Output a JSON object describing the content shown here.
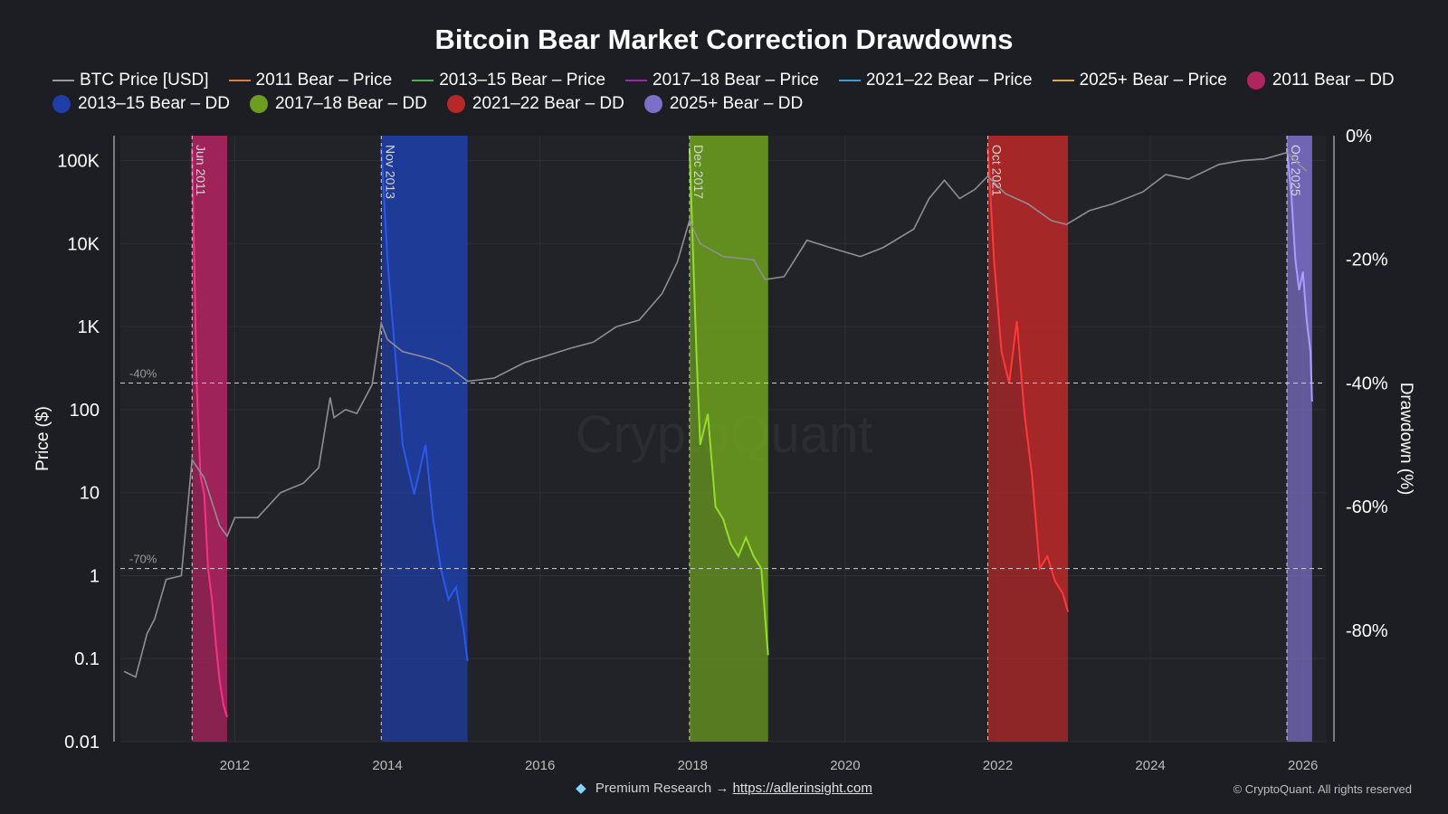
{
  "title": "Bitcoin Bear Market Correction Drawdowns",
  "legend": [
    {
      "label": "BTC Price [USD]",
      "kind": "line",
      "color": "#9a9a9a"
    },
    {
      "label": "2011 Bear – Price",
      "kind": "line",
      "color": "#e07b39"
    },
    {
      "label": "2013–15 Bear – Price",
      "kind": "line",
      "color": "#4caf50"
    },
    {
      "label": "2017–18 Bear – Price",
      "kind": "line",
      "color": "#9c27b0"
    },
    {
      "label": "2021–22 Bear – Price",
      "kind": "line",
      "color": "#3a9bd5"
    },
    {
      "label": "2025+ Bear – Price",
      "kind": "line",
      "color": "#d9a84a"
    },
    {
      "label": "2011 Bear – DD",
      "kind": "dot",
      "color": "#b0245f"
    },
    {
      "label": "2013–15 Bear – DD",
      "kind": "dot",
      "color": "#1e3fa8"
    },
    {
      "label": "2017–18 Bear – DD",
      "kind": "dot",
      "color": "#6b9e1f"
    },
    {
      "label": "2021–22 Bear – DD",
      "kind": "dot",
      "color": "#b82828"
    },
    {
      "label": "2025+ Bear – DD",
      "kind": "dot",
      "color": "#7b6fc8"
    }
  ],
  "chart_data": {
    "type": "line",
    "title": "Bitcoin Bear Market Correction Drawdowns",
    "xlabel": "",
    "ylabel": "Price ($)",
    "y2label": "Drawdown (%)",
    "yscale": "log",
    "xlim": [
      2010.5,
      2026.3
    ],
    "ylim": [
      0.01,
      200000
    ],
    "y2lim": [
      -98,
      0
    ],
    "x_ticks": [
      "2012",
      "2014",
      "2016",
      "2018",
      "2020",
      "2022",
      "2024",
      "2026"
    ],
    "y_ticks": [
      "0.01",
      "0.1",
      "1",
      "10",
      "100",
      "1K",
      "10K",
      "100K"
    ],
    "y2_ticks": [
      "0%",
      "-20%",
      "-40%",
      "-60%",
      "-80%"
    ],
    "grid": true,
    "legend_position": "top",
    "reference_lines": [
      {
        "label": "-40%",
        "drawdown": -40
      },
      {
        "label": "-70%",
        "drawdown": -70
      }
    ],
    "events": [
      {
        "label": "Jun 2011",
        "x": 2011.44
      },
      {
        "label": "Nov 2013",
        "x": 2013.92
      },
      {
        "label": "Dec 2017",
        "x": 2017.96
      },
      {
        "label": "Oct 2021",
        "x": 2021.87
      },
      {
        "label": "Oct 2025",
        "x": 2025.79
      }
    ],
    "series": [
      {
        "name": "BTC Price [USD]",
        "color": "#8e8e93",
        "x": [
          2010.55,
          2010.7,
          2010.85,
          2010.95,
          2011.1,
          2011.3,
          2011.44,
          2011.6,
          2011.8,
          2011.9,
          2012.0,
          2012.3,
          2012.6,
          2012.9,
          2013.1,
          2013.25,
          2013.3,
          2013.45,
          2013.6,
          2013.8,
          2013.92,
          2014.0,
          2014.2,
          2014.4,
          2014.6,
          2014.8,
          2015.05,
          2015.4,
          2015.8,
          2016.0,
          2016.4,
          2016.7,
          2017.0,
          2017.3,
          2017.6,
          2017.8,
          2017.96,
          2018.1,
          2018.4,
          2018.8,
          2018.95,
          2019.2,
          2019.5,
          2019.8,
          2020.2,
          2020.5,
          2020.9,
          2021.1,
          2021.3,
          2021.5,
          2021.7,
          2021.87,
          2022.1,
          2022.4,
          2022.7,
          2022.9,
          2023.2,
          2023.5,
          2023.9,
          2024.2,
          2024.5,
          2024.9,
          2025.2,
          2025.5,
          2025.79,
          2025.95,
          2026.05
        ],
        "y": [
          0.07,
          0.06,
          0.2,
          0.3,
          0.9,
          1.0,
          25,
          15,
          4,
          3,
          5,
          5,
          10,
          13,
          20,
          140,
          80,
          100,
          90,
          200,
          1100,
          700,
          500,
          450,
          400,
          330,
          220,
          240,
          370,
          420,
          550,
          650,
          1000,
          1200,
          2500,
          6000,
          19000,
          10000,
          7000,
          6400,
          3700,
          4000,
          11000,
          9000,
          7000,
          9000,
          15000,
          35000,
          58000,
          35000,
          45000,
          65000,
          40000,
          30000,
          19000,
          17000,
          25000,
          30000,
          42000,
          68000,
          60000,
          90000,
          100000,
          105000,
          125000,
          90000,
          75000
        ]
      }
    ],
    "bear_markets": [
      {
        "name": "2011",
        "start": 2011.44,
        "end": 2011.9,
        "dd_x": [
          2011.44,
          2011.5,
          2011.55,
          2011.6,
          2011.65,
          2011.7,
          2011.75,
          2011.8,
          2011.85,
          2011.9
        ],
        "dd_y": [
          -2,
          -40,
          -55,
          -58,
          -70,
          -75,
          -82,
          -88,
          -92,
          -94
        ]
      },
      {
        "name": "2013–15",
        "start": 2013.92,
        "end": 2015.05,
        "dd_x": [
          2013.92,
          2014.0,
          2014.1,
          2014.2,
          2014.35,
          2014.5,
          2014.6,
          2014.7,
          2014.8,
          2014.9,
          2015.0,
          2015.05
        ],
        "dd_y": [
          -2,
          -20,
          -35,
          -50,
          -58,
          -50,
          -62,
          -70,
          -75,
          -73,
          -80,
          -85
        ]
      },
      {
        "name": "2017–18",
        "start": 2017.96,
        "end": 2018.99,
        "dd_x": [
          2017.96,
          2018.05,
          2018.1,
          2018.2,
          2018.3,
          2018.4,
          2018.5,
          2018.6,
          2018.7,
          2018.8,
          2018.9,
          2018.99
        ],
        "dd_y": [
          -2,
          -35,
          -50,
          -45,
          -60,
          -62,
          -66,
          -68,
          -65,
          -68,
          -70,
          -84
        ]
      },
      {
        "name": "2021–22",
        "start": 2021.87,
        "end": 2022.92,
        "dd_x": [
          2021.87,
          2021.95,
          2022.05,
          2022.15,
          2022.25,
          2022.35,
          2022.45,
          2022.55,
          2022.65,
          2022.75,
          2022.85,
          2022.92
        ],
        "dd_y": [
          -2,
          -20,
          -35,
          -40,
          -30,
          -45,
          -55,
          -70,
          -68,
          -72,
          -74,
          -77
        ]
      },
      {
        "name": "2025+",
        "start": 2025.79,
        "end": 2026.12,
        "dd_x": [
          2025.79,
          2025.85,
          2025.9,
          2025.95,
          2026.0,
          2026.05,
          2026.1,
          2026.12
        ],
        "dd_y": [
          -2,
          -10,
          -20,
          -25,
          -22,
          -30,
          -35,
          -43
        ]
      }
    ]
  },
  "footer": {
    "gem_icon": "diamond",
    "prefix": "Premium Research →",
    "link": "https://adlerinsight.com",
    "copyright": "© CryptoQuant. All rights reserved"
  },
  "watermark": "CryptoQuant"
}
